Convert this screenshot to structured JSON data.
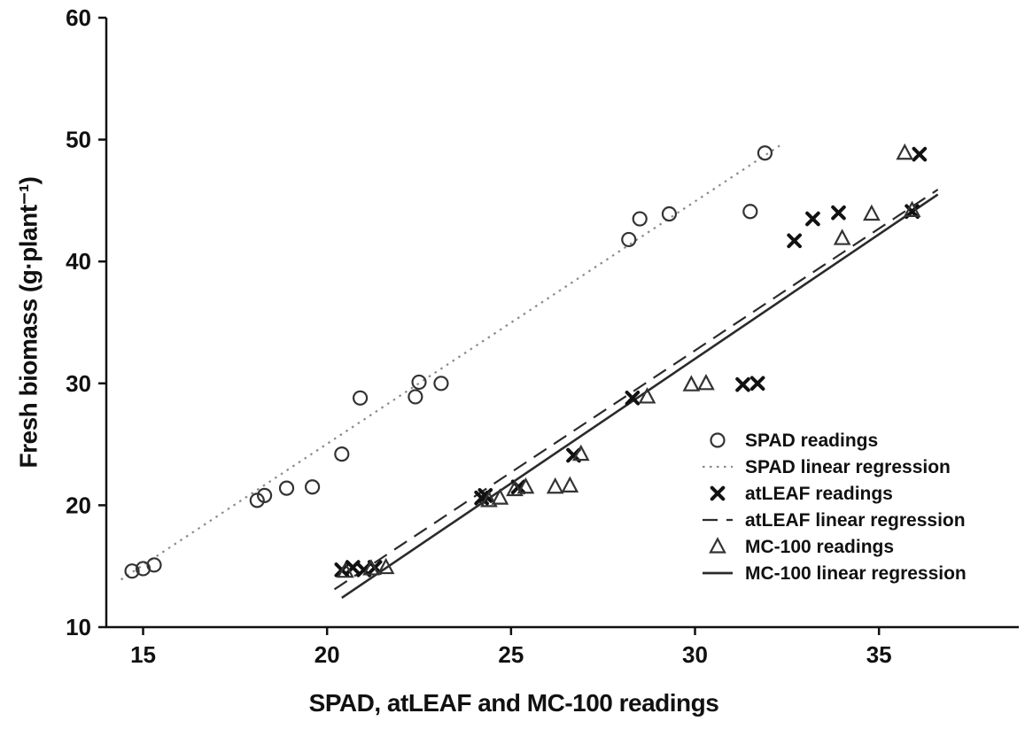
{
  "chart_data": {
    "type": "scatter",
    "title": "",
    "xlabel": "SPAD, atLEAF and MC-100 readings",
    "ylabel": "Fresh biomass (g·plant⁻¹)",
    "xlim": [
      14,
      38.8
    ],
    "ylim": [
      10,
      60
    ],
    "xticks": [
      15,
      20,
      25,
      30,
      35
    ],
    "yticks": [
      10,
      20,
      30,
      40,
      50,
      60
    ],
    "grid": false,
    "legend_position": "inside-right",
    "series": [
      {
        "name": "SPAD readings",
        "marker": "circle",
        "points": [
          [
            14.7,
            14.6
          ],
          [
            15.0,
            14.8
          ],
          [
            15.3,
            15.1
          ],
          [
            18.1,
            20.4
          ],
          [
            18.3,
            20.8
          ],
          [
            18.9,
            21.4
          ],
          [
            19.6,
            21.5
          ],
          [
            20.4,
            24.2
          ],
          [
            20.9,
            28.8
          ],
          [
            22.4,
            28.9
          ],
          [
            22.5,
            30.1
          ],
          [
            23.1,
            30.0
          ],
          [
            28.2,
            41.8
          ],
          [
            28.5,
            43.5
          ],
          [
            29.3,
            43.9
          ],
          [
            31.5,
            44.1
          ],
          [
            31.9,
            48.9
          ]
        ]
      },
      {
        "name": "atLEAF readings",
        "marker": "x",
        "points": [
          [
            20.4,
            14.7
          ],
          [
            20.7,
            14.9
          ],
          [
            21.0,
            14.7
          ],
          [
            21.3,
            14.9
          ],
          [
            24.2,
            20.6
          ],
          [
            24.3,
            20.8
          ],
          [
            25.2,
            21.5
          ],
          [
            26.7,
            24.1
          ],
          [
            28.3,
            28.8
          ],
          [
            31.3,
            29.9
          ],
          [
            31.7,
            30.0
          ],
          [
            32.7,
            41.7
          ],
          [
            33.2,
            43.5
          ],
          [
            33.9,
            44.0
          ],
          [
            35.9,
            44.1
          ],
          [
            36.1,
            48.8
          ]
        ]
      },
      {
        "name": "MC-100 readings",
        "marker": "triangle",
        "points": [
          [
            20.5,
            14.6
          ],
          [
            21.2,
            14.8
          ],
          [
            21.6,
            14.9
          ],
          [
            24.4,
            20.4
          ],
          [
            24.7,
            20.6
          ],
          [
            25.1,
            21.3
          ],
          [
            25.4,
            21.5
          ],
          [
            26.2,
            21.5
          ],
          [
            26.6,
            21.6
          ],
          [
            26.9,
            24.2
          ],
          [
            28.7,
            28.9
          ],
          [
            29.9,
            29.9
          ],
          [
            30.3,
            30.0
          ],
          [
            34.0,
            41.9
          ],
          [
            34.8,
            43.9
          ],
          [
            35.7,
            48.9
          ],
          [
            35.9,
            44.2
          ]
        ]
      }
    ],
    "regressions": [
      {
        "name": "SPAD linear regression",
        "style": "dotted",
        "x1": 14.4,
        "y1": 13.9,
        "x2": 32.3,
        "y2": 49.5
      },
      {
        "name": "atLEAF linear regression",
        "style": "dashed",
        "x1": 20.2,
        "y1": 13.1,
        "x2": 36.6,
        "y2": 45.9
      },
      {
        "name": "MC-100 linear regression",
        "style": "solid",
        "x1": 20.4,
        "y1": 12.4,
        "x2": 36.6,
        "y2": 45.5
      }
    ],
    "legend": [
      {
        "marker": "circle",
        "label": "SPAD readings"
      },
      {
        "line": "dotted",
        "label": "SPAD linear regression"
      },
      {
        "marker": "x",
        "label": "atLEAF readings"
      },
      {
        "line": "dashed",
        "label": "atLEAF linear regression"
      },
      {
        "marker": "triangle",
        "label": "MC-100 readings"
      },
      {
        "line": "solid",
        "label": "MC-100 linear regression"
      }
    ],
    "colors": {
      "axis": "#111111",
      "marker": "#333333",
      "dotted_line": "#8a8a8a",
      "dark_line": "#2b2b2b",
      "background": "#ffffff"
    }
  }
}
